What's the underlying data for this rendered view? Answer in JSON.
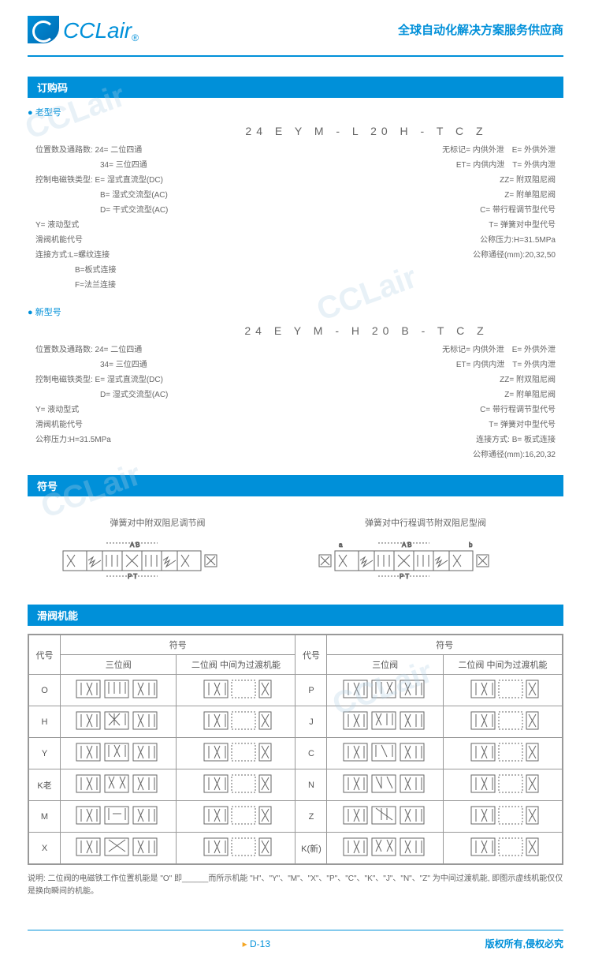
{
  "brand": {
    "name": "CCLair",
    "tagline": "全球自动化解决方案服务供应商"
  },
  "sections": {
    "order_code": "订购码",
    "symbol": "符号",
    "spool_function": "滑阀机能"
  },
  "old_model": {
    "label": "老型号",
    "code": "24 E Y M - L 20 H - T C Z",
    "left": [
      "位置数及通路数: 24= 二位四通",
      "34= 三位四通",
      "控制电磁铁类型: E= 湿式直流型(DC)",
      "B= 湿式交流型(AC)",
      "D= 干式交流型(AC)",
      "Y= 液动型式",
      "滑阀机能代号",
      "连接方式:L=螺纹连接",
      "B=板式连接",
      "F=法兰连接"
    ],
    "right": [
      "无标记= 内供外泄　E= 外供外泄",
      "ET= 内供内泄　T= 外供内泄",
      "ZZ= 附双阻尼阀",
      "Z= 附单阻尼阀",
      "C= 带行程调节型代号",
      "T= 弹簧对中型代号",
      "公称压力:H=31.5MPa",
      "公称通径(mm):20,32,50"
    ]
  },
  "new_model": {
    "label": "新型号",
    "code": "24 E Y M - H 20 B - T C Z",
    "left": [
      "位置数及通路数: 24= 二位四通",
      "34= 三位四通",
      "控制电磁铁类型: E= 湿式直流型(DC)",
      "D= 湿式交流型(AC)",
      "Y= 液动型式",
      "滑阀机能代号",
      "公称压力:H=31.5MPa"
    ],
    "right": [
      "无标记= 内供外泄　E= 外供外泄",
      "ET= 内供内泄　T= 外供内泄",
      "ZZ= 附双阻尼阀",
      "Z= 附单阻尼阀",
      "C= 带行程调节型代号",
      "T= 弹簧对中型代号",
      "连接方式: B= 板式连接",
      "公称通径(mm):16,20,32"
    ]
  },
  "symbol_titles": {
    "sym1": "弹簧对中附双阻尼调节阀",
    "sym2": "弹簧对中行程调节附双阻尼型阀"
  },
  "func_table": {
    "headers": {
      "code": "代号",
      "symbol": "符号",
      "three_pos": "三位阀",
      "two_pos": "二位阀 中间为过渡机能"
    },
    "codes_left": [
      "O",
      "H",
      "Y",
      "K老",
      "M",
      "X"
    ],
    "codes_right": [
      "P",
      "J",
      "C",
      "N",
      "Z",
      "K(新)"
    ]
  },
  "note_text": "说明: 二位阀的电磁铁工作位置机能是 \"O\" 即______而所示机能 \"H\"、\"Y\"、\"M\"、\"X\"、\"P\"、\"C\"、\"K\"、\"J\"、\"N\"、\"Z\" 为中间过渡机能, 即图示虚线机能仅仅是换向瞬间的机能。",
  "page": "D-13",
  "copyright": "版权所有,侵权必究",
  "colors": {
    "primary": "#0090d9",
    "text": "#666666",
    "border": "#999999",
    "accent": "#f5a623"
  }
}
